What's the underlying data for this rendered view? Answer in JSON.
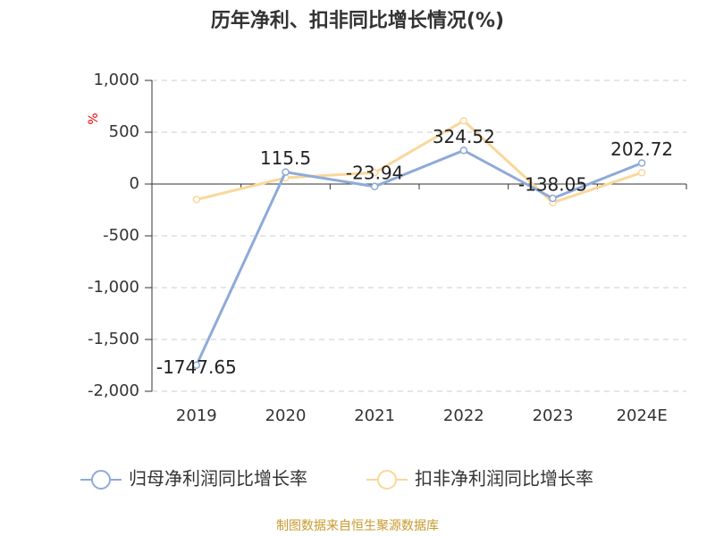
{
  "chart_data": {
    "type": "line",
    "title": "历年净利、扣非同比增长情况(%)",
    "y_unit": "%",
    "categories": [
      "2019",
      "2020",
      "2021",
      "2022",
      "2023",
      "2024E"
    ],
    "series": [
      {
        "name": "归母净利润同比增长率",
        "color": "#8eaad8",
        "values": [
          -1747.65,
          115.5,
          -23.94,
          324.52,
          -138.05,
          202.72
        ],
        "show_labels": true
      },
      {
        "name": "扣非净利润同比增长率",
        "color": "#fad79a",
        "values": [
          -150,
          60,
          110,
          610,
          -180,
          110
        ],
        "show_labels": false
      }
    ],
    "ylim": [
      -2000,
      1000
    ],
    "yticks": [
      {
        "value": 1000,
        "label": "1,000"
      },
      500,
      0,
      -500,
      {
        "value": -1000,
        "label": "-1,000"
      },
      {
        "value": -1500,
        "label": "-1,500"
      },
      {
        "value": -2000,
        "label": "-2,000"
      }
    ],
    "grid": true,
    "legend": "bottom",
    "source": "制图数据来自恒生聚源数据库"
  }
}
